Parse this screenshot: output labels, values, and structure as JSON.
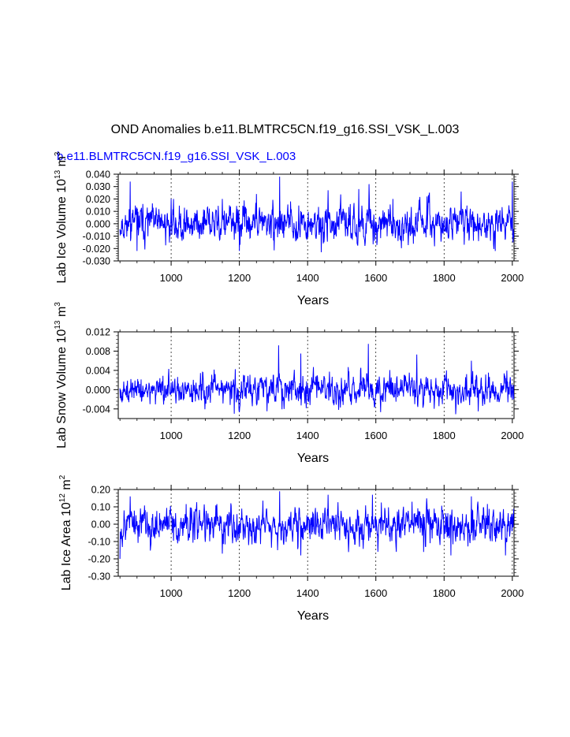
{
  "figure": {
    "title": "OND Anomalies b.e11.BLMTRC5CN.f19_g16.SSI_VSK_L.003",
    "subtitle": "b.e11.BLMTRC5CN.f19_g16.SSI_VSK_L.003",
    "line_color": "#0000ff"
  },
  "chart_data": [
    {
      "type": "line",
      "name": "lab-ice-volume",
      "xlabel": "Years",
      "ylabel_main": "Lab Ice Volume 10",
      "ylabel_exp": "13",
      "ylabel_unit": " m",
      "ylabel_unit_exp": "3",
      "xlim": [
        845,
        2005
      ],
      "ylim": [
        -0.03,
        0.04
      ],
      "xticks": [
        1000,
        1200,
        1400,
        1600,
        1800,
        2000
      ],
      "xtick_labels": [
        "1000",
        "1200",
        "1400",
        "1600",
        "1800",
        "2000"
      ],
      "yticks": [
        -0.03,
        -0.02,
        -0.01,
        0.0,
        0.01,
        0.02,
        0.03,
        0.04
      ],
      "ytick_labels": [
        "-0.030",
        "-0.020",
        "-0.010",
        "0.000",
        "0.010",
        "0.020",
        "0.030",
        "0.040"
      ],
      "std": 0.0075,
      "spikes": [
        [
          880,
          0.034
        ],
        [
          900,
          -0.022
        ],
        [
          1000,
          0.02
        ],
        [
          1150,
          0.02
        ],
        [
          1200,
          -0.022
        ],
        [
          1250,
          0.024
        ],
        [
          1318,
          0.038
        ],
        [
          1350,
          0.018
        ],
        [
          1440,
          -0.023
        ],
        [
          1460,
          0.027
        ],
        [
          1550,
          0.028
        ],
        [
          1580,
          0.032
        ],
        [
          1650,
          0.02
        ],
        [
          1750,
          0.022
        ],
        [
          1850,
          0.026
        ],
        [
          1950,
          -0.022
        ],
        [
          2000,
          0.034
        ]
      ],
      "seed": 11
    },
    {
      "type": "line",
      "name": "lab-snow-volume",
      "xlabel": "Years",
      "ylabel_main": "Lab Snow Volume 10",
      "ylabel_exp": "13",
      "ylabel_unit": " m",
      "ylabel_unit_exp": "3",
      "xlim": [
        845,
        2005
      ],
      "ylim": [
        -0.006,
        0.012
      ],
      "xticks": [
        1000,
        1200,
        1400,
        1600,
        1800,
        2000
      ],
      "xtick_labels": [
        "1000",
        "1200",
        "1400",
        "1600",
        "1800",
        "2000"
      ],
      "yticks": [
        -0.004,
        0.0,
        0.004,
        0.008,
        0.012
      ],
      "ytick_labels": [
        "-0.004",
        "0.000",
        "0.004",
        "0.008",
        "0.012"
      ],
      "std": 0.0016,
      "spikes": [
        [
          1185,
          -0.005
        ],
        [
          1315,
          0.0092
        ],
        [
          1380,
          0.0075
        ],
        [
          1578,
          0.0095
        ],
        [
          1720,
          0.0073
        ],
        [
          1880,
          0.006
        ],
        [
          1900,
          -0.0045
        ]
      ],
      "seed": 27
    },
    {
      "type": "line",
      "name": "lab-ice-area",
      "xlabel": "Years",
      "ylabel_main": "Lab Ice Area 10",
      "ylabel_exp": "12",
      "ylabel_unit": " m",
      "ylabel_unit_exp": "2",
      "xlim": [
        845,
        2005
      ],
      "ylim": [
        -0.3,
        0.2
      ],
      "xticks": [
        1000,
        1200,
        1400,
        1600,
        1800,
        2000
      ],
      "xtick_labels": [
        "1000",
        "1200",
        "1400",
        "1600",
        "1800",
        "2000"
      ],
      "yticks": [
        -0.3,
        -0.2,
        -0.1,
        0.0,
        0.1,
        0.2
      ],
      "ytick_labels": [
        "-0.30",
        "-0.20",
        "-0.10",
        "0.00",
        "0.10",
        "0.20"
      ],
      "std": 0.055,
      "spikes": [
        [
          850,
          -0.2
        ],
        [
          880,
          0.16
        ],
        [
          1150,
          -0.17
        ],
        [
          1318,
          0.19
        ],
        [
          1380,
          -0.18
        ],
        [
          1460,
          0.17
        ],
        [
          1590,
          0.17
        ],
        [
          1740,
          -0.16
        ],
        [
          1820,
          -0.18
        ],
        [
          1880,
          0.16
        ],
        [
          1980,
          -0.18
        ]
      ],
      "seed": 53
    }
  ]
}
